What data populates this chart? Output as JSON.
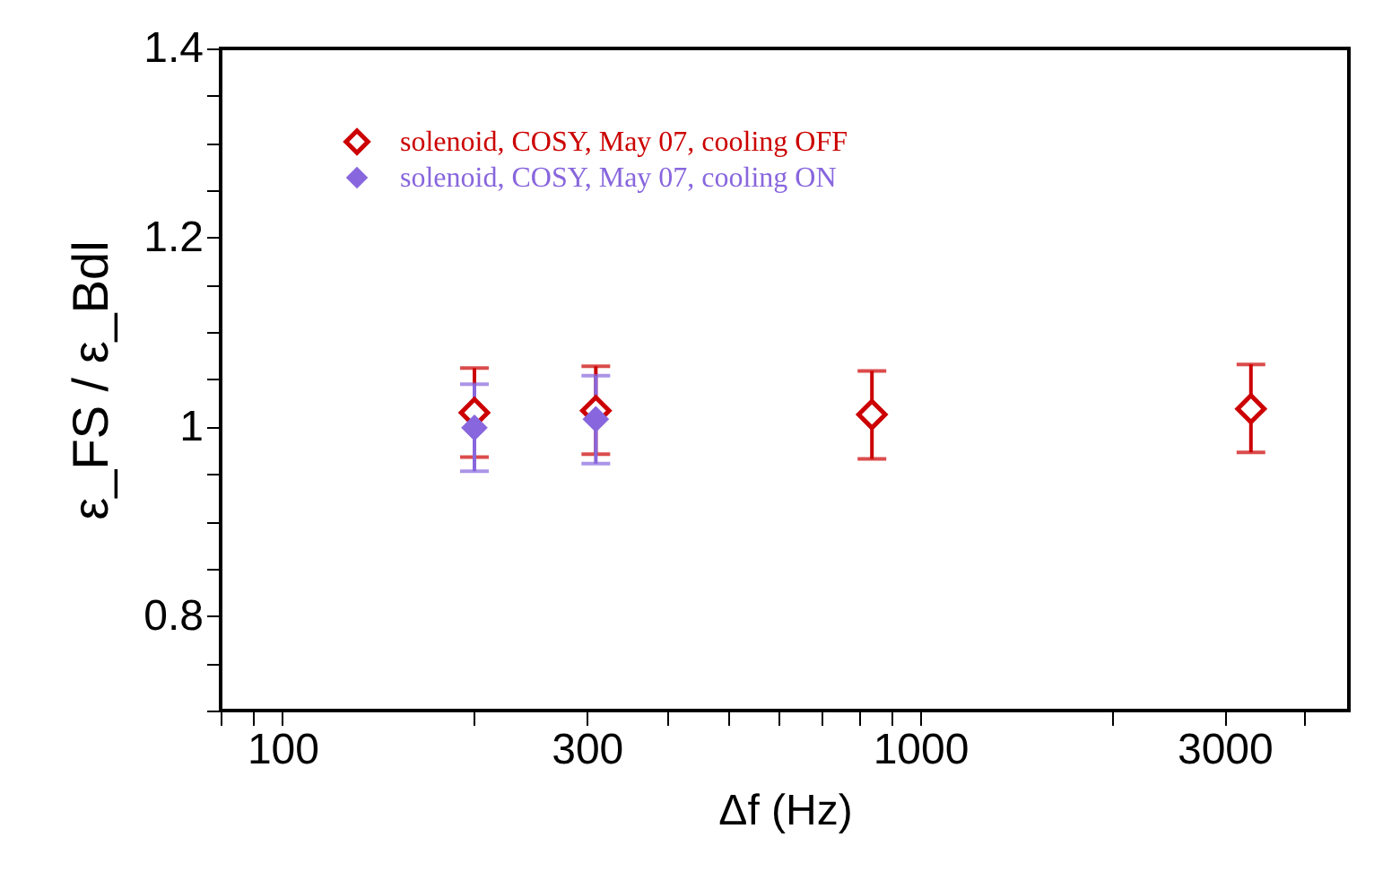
{
  "chart_data": {
    "type": "scatter",
    "xlabel": "Δf (Hz)",
    "ylabel": "ε_FS / ε_Bdl",
    "log": "x",
    "grid": false,
    "legend": "top left",
    "marker": "diamond",
    "xlim": [
      80,
      4700
    ],
    "xticks": [
      {
        "value": 80,
        "label": null
      },
      {
        "value": 90,
        "label": null
      },
      100,
      {
        "value": 200,
        "label": null
      },
      300,
      {
        "value": 400,
        "label": null
      },
      {
        "value": 500,
        "label": null
      },
      {
        "value": 600,
        "label": null
      },
      {
        "value": 700,
        "label": null
      },
      {
        "value": 800,
        "label": null
      },
      {
        "value": 900,
        "label": null
      },
      1000,
      {
        "value": 2000,
        "label": null
      },
      3000,
      {
        "value": 4000,
        "label": null
      }
    ],
    "ylim": [
      0.7,
      1.4
    ],
    "yticks": [
      {
        "value": 0.7,
        "label": null
      },
      {
        "value": 0.75,
        "label": null
      },
      0.8,
      {
        "value": 0.85,
        "label": null
      },
      {
        "value": 0.9,
        "label": null
      },
      {
        "value": 0.95,
        "label": null
      },
      1,
      {
        "value": 1.05,
        "label": null
      },
      {
        "value": 1.1,
        "label": null
      },
      {
        "value": 1.15,
        "label": null
      },
      1.2,
      {
        "value": 1.25,
        "label": null
      },
      {
        "value": 1.3,
        "label": null
      },
      {
        "value": 1.35,
        "label": null
      },
      1.4
    ],
    "series": [
      {
        "name": "solenoid, COSY, May 07, cooling OFF",
        "color": "#cc0000",
        "x": [
          200,
          310,
          840,
          3300
        ],
        "values": [
          1.015,
          1.017,
          1.013,
          1.019
        ],
        "errors": [
          [
            0.968,
            1.062
          ],
          [
            0.971,
            1.064
          ],
          [
            0.966,
            1.059
          ],
          [
            0.973,
            1.066
          ]
        ]
      },
      {
        "name": "solenoid, COSY, May 07, cooling ON",
        "color": "#8866dd",
        "x": [
          200,
          310
        ],
        "values": [
          0.999,
          1.008
        ],
        "errors": [
          [
            0.953,
            1.045
          ],
          [
            0.961,
            1.054
          ]
        ]
      }
    ]
  }
}
